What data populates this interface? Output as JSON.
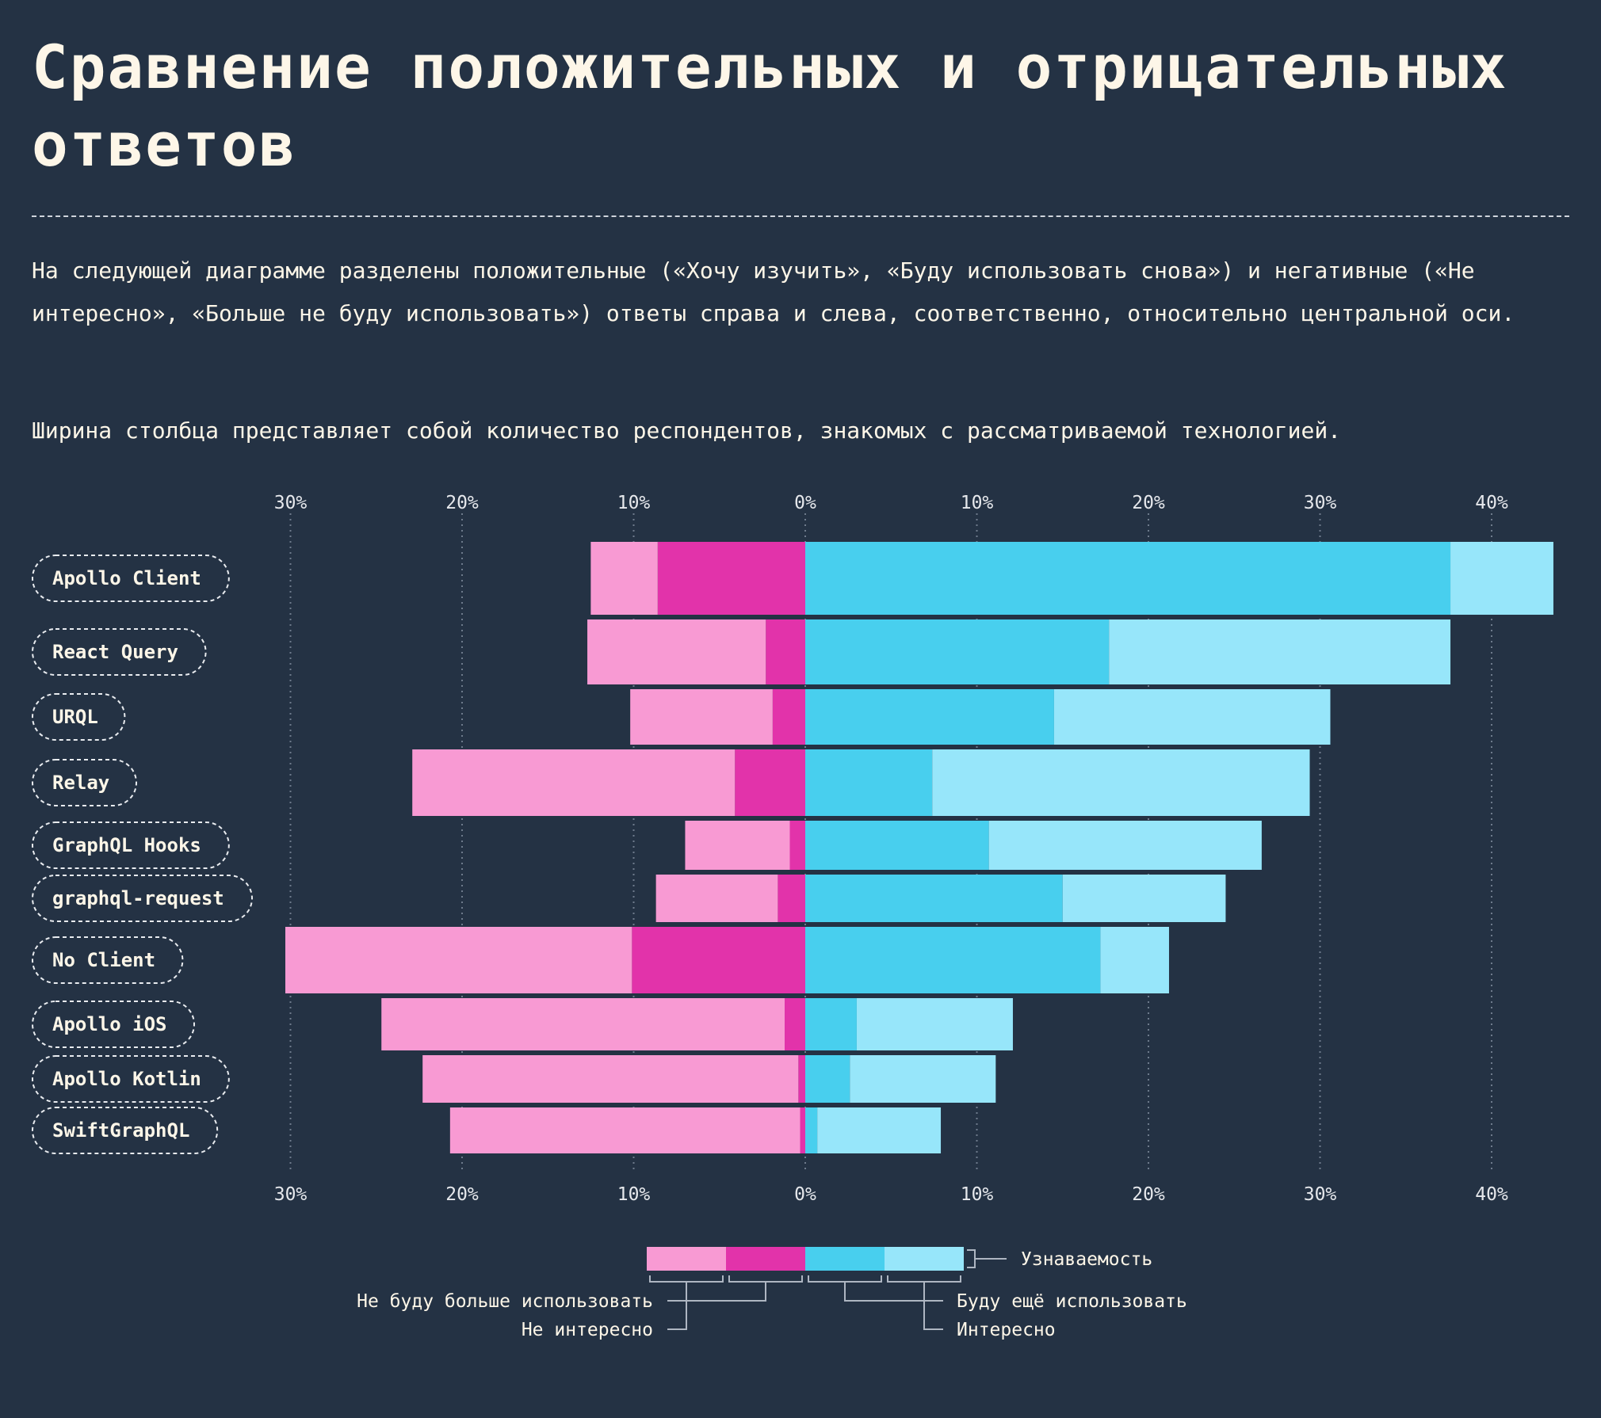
{
  "title": "Сравнение положительных и отрицательных ответов",
  "description": [
    "На следующей диаграмме разделены положительные («Хочу изучить», «Буду использовать снова») и негативные («Не интересно», «Больше не буду использовать») ответы справа и слева, соответственно, относительно центральной оси.",
    "Ширина столбца представляет собой количество респондентов, знакомых с рассматриваемой технологией."
  ],
  "colors": {
    "not_interested": "#f89ad3",
    "would_not_use": "#e233aa",
    "would_use": "#48cfee",
    "interested": "#97e6fa"
  },
  "chart_data": {
    "type": "bar",
    "orientation": "horizontal-diverging",
    "xlim": [
      -30,
      44
    ],
    "tick_values": [
      -30,
      -20,
      -10,
      0,
      10,
      20,
      30,
      40
    ],
    "tick_labels": [
      "30%",
      "20%",
      "10%",
      "0%",
      "10%",
      "20%",
      "30%",
      "40%"
    ],
    "categories": [
      "Apollo Client",
      "React Query",
      "URQL",
      "Relay",
      "GraphQL Hooks",
      "graphql-request",
      "No Client",
      "Apollo iOS",
      "Apollo Kotlin",
      "SwiftGraphQL"
    ],
    "awareness": [
      0.93,
      0.8,
      0.7,
      0.85,
      0.6,
      0.6,
      0.85,
      0.7,
      0.65,
      0.6
    ],
    "series": [
      {
        "name": "Не интересно",
        "color": "#f89ad3",
        "values": [
          -3.9,
          -10.4,
          -8.3,
          -18.8,
          -6.1,
          -7.1,
          -20.2,
          -23.5,
          -21.9,
          -20.4
        ]
      },
      {
        "name": "Не буду больше использовать",
        "color": "#e233aa",
        "values": [
          -8.6,
          -2.3,
          -1.9,
          -4.1,
          -0.9,
          -1.6,
          -10.1,
          -1.2,
          -0.4,
          -0.3
        ]
      },
      {
        "name": "Буду ещё использовать",
        "color": "#48cfee",
        "values": [
          37.6,
          17.7,
          14.5,
          7.4,
          10.7,
          15.0,
          17.2,
          3.0,
          2.6,
          0.7
        ]
      },
      {
        "name": "Интересно",
        "color": "#97e6fa",
        "values": [
          6.0,
          19.9,
          16.1,
          22.0,
          15.9,
          9.5,
          4.0,
          9.1,
          8.5,
          7.2
        ]
      }
    ],
    "grid": true,
    "legend": {
      "position": "bottom-center",
      "awareness_label": "Узнаваемость",
      "labels_left": [
        "Не буду больше использовать",
        "Не интересно"
      ],
      "labels_right": [
        "Буду ещё использовать",
        "Интересно"
      ]
    }
  }
}
